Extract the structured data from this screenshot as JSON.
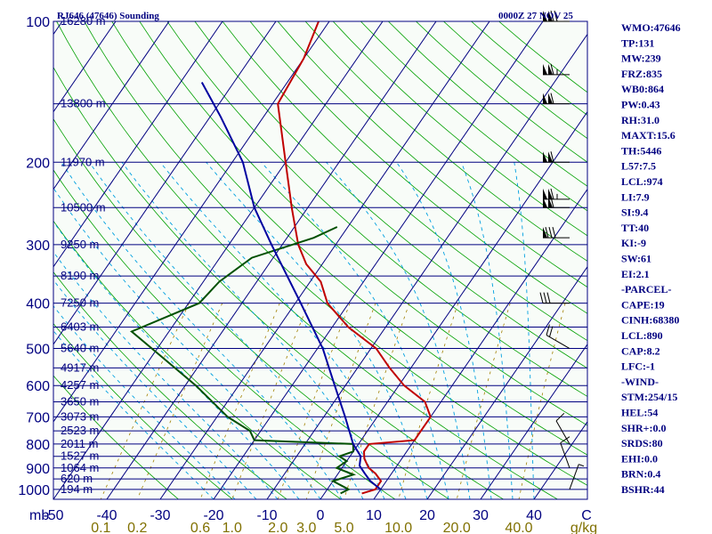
{
  "chart_data": {
    "type": "skew-t sounding",
    "title_left": "RJ646 (47646) Sounding",
    "title_right": "0000Z 27 NOV 25",
    "y_axis_unit": "mb",
    "pressure_levels": [
      100,
      200,
      300,
      400,
      500,
      600,
      700,
      800,
      900,
      1000
    ],
    "temperature_ticks": [
      -50,
      -40,
      -30,
      -20,
      -10,
      0,
      10,
      20,
      30,
      40
    ],
    "temperature_unit": "C",
    "mixing_ratio_ticks": [
      "0.1",
      "0.2",
      "0.6",
      "1.0",
      "2.0",
      "3.0",
      "5.0",
      "10.0",
      "20.0",
      "40.0"
    ],
    "mixing_ratio_unit": "g/kg",
    "height_labels": [
      {
        "p": 100,
        "text": "16280 m"
      },
      {
        "p": 150,
        "text": "13800 m"
      },
      {
        "p": 200,
        "text": "11970 m"
      },
      {
        "p": 250,
        "text": "10500 m"
      },
      {
        "p": 300,
        "text": "9250 m"
      },
      {
        "p": 350,
        "text": "8190 m"
      },
      {
        "p": 400,
        "text": "7250 m"
      },
      {
        "p": 450,
        "text": "6403 m"
      },
      {
        "p": 500,
        "text": "5640 m"
      },
      {
        "p": 550,
        "text": "4917 m"
      },
      {
        "p": 600,
        "text": "4257 m"
      },
      {
        "p": 650,
        "text": "3650 m"
      },
      {
        "p": 700,
        "text": "3073 m"
      },
      {
        "p": 750,
        "text": "2523 m"
      },
      {
        "p": 800,
        "text": "2011 m"
      },
      {
        "p": 850,
        "text": "1527 m"
      },
      {
        "p": 900,
        "text": "1064 m"
      },
      {
        "p": 950,
        "text": "620 m"
      },
      {
        "p": 1000,
        "text": "194 m"
      }
    ],
    "series": [
      {
        "name": "temperature",
        "color": "#c00000",
        "points": [
          [
            1020,
            7
          ],
          [
            1000,
            9
          ],
          [
            960,
            9
          ],
          [
            925,
            7
          ],
          [
            900,
            5
          ],
          [
            860,
            3
          ],
          [
            830,
            2
          ],
          [
            800,
            2
          ],
          [
            785,
            10
          ],
          [
            750,
            10
          ],
          [
            700,
            10
          ],
          [
            650,
            7
          ],
          [
            600,
            1
          ],
          [
            550,
            -4
          ],
          [
            500,
            -9
          ],
          [
            450,
            -17
          ],
          [
            400,
            -24
          ],
          [
            360,
            -28
          ],
          [
            330,
            -33
          ],
          [
            300,
            -37
          ],
          [
            250,
            -43
          ],
          [
            200,
            -50
          ],
          [
            150,
            -59
          ],
          [
            120,
            -60
          ],
          [
            100,
            -62
          ]
        ]
      },
      {
        "name": "dewpoint",
        "color": "#005000",
        "points": [
          [
            1020,
            3
          ],
          [
            1000,
            4
          ],
          [
            960,
            0
          ],
          [
            930,
            3
          ],
          [
            900,
            -1
          ],
          [
            870,
            0
          ],
          [
            850,
            -2
          ],
          [
            830,
            0
          ],
          [
            800,
            -1
          ],
          [
            785,
            -20
          ],
          [
            750,
            -22
          ],
          [
            700,
            -28
          ],
          [
            600,
            -38
          ],
          [
            500,
            -51
          ],
          [
            460,
            -57
          ],
          [
            400,
            -48
          ],
          [
            360,
            -47
          ],
          [
            320,
            -44
          ],
          [
            290,
            -35
          ],
          [
            275,
            -32
          ]
        ]
      },
      {
        "name": "parcel",
        "color": "#0000a0",
        "points": [
          [
            1000,
            10
          ],
          [
            960,
            7
          ],
          [
            925,
            5
          ],
          [
            890,
            3
          ],
          [
            850,
            2
          ],
          [
            800,
            -1
          ],
          [
            700,
            -6
          ],
          [
            600,
            -12
          ],
          [
            500,
            -19
          ],
          [
            400,
            -29
          ],
          [
            300,
            -42
          ],
          [
            250,
            -50
          ],
          [
            200,
            -58
          ],
          [
            160,
            -68
          ],
          [
            135,
            -76
          ]
        ]
      }
    ],
    "wind_barbs": [
      {
        "p": 100,
        "dir": 270,
        "kt": 120
      },
      {
        "p": 130,
        "dir": 270,
        "kt": 115
      },
      {
        "p": 150,
        "dir": 270,
        "kt": 110
      },
      {
        "p": 200,
        "dir": 270,
        "kt": 110
      },
      {
        "p": 240,
        "dir": 270,
        "kt": 115
      },
      {
        "p": 250,
        "dir": 270,
        "kt": 110
      },
      {
        "p": 290,
        "dir": 270,
        "kt": 80
      },
      {
        "p": 400,
        "dir": 270,
        "kt": 30
      },
      {
        "p": 500,
        "dir": 300,
        "kt": 20
      },
      {
        "p": 800,
        "dir": 330,
        "kt": 10
      },
      {
        "p": 900,
        "dir": 340,
        "kt": 10
      },
      {
        "p": 1000,
        "dir": 20,
        "kt": 5
      }
    ]
  },
  "indices": [
    "WMO:47646",
    "TP:131",
    "MW:239",
    "FRZ:835",
    "WB0:864",
    "PW:0.43",
    "RH:31.0",
    "MAXT:15.6",
    "TH:5446",
    "L57:7.5",
    "LCL:974",
    "LI:7.9",
    "SI:9.4",
    "TT:40",
    "KI:-9",
    "SW:61",
    "EI:2.1",
    "-PARCEL-",
    "CAPE:19",
    "CINH:68380",
    "LCL:890",
    "CAP:8.2",
    "LFC:-1",
    "-WIND-",
    "STM:254/15",
    "HEL:54",
    "SHR+:0.0",
    "SRDS:80",
    "EHI:0.0",
    "BRN:0.4",
    "BSHR:44"
  ],
  "colors": {
    "isobar": "#000080",
    "isotherm": "#000080",
    "dry_adiabat": "#00a000",
    "moist_adiabat": "#00a0e0",
    "mixing_ratio": "#a08000",
    "plot_bg": "#f8fcf8"
  }
}
